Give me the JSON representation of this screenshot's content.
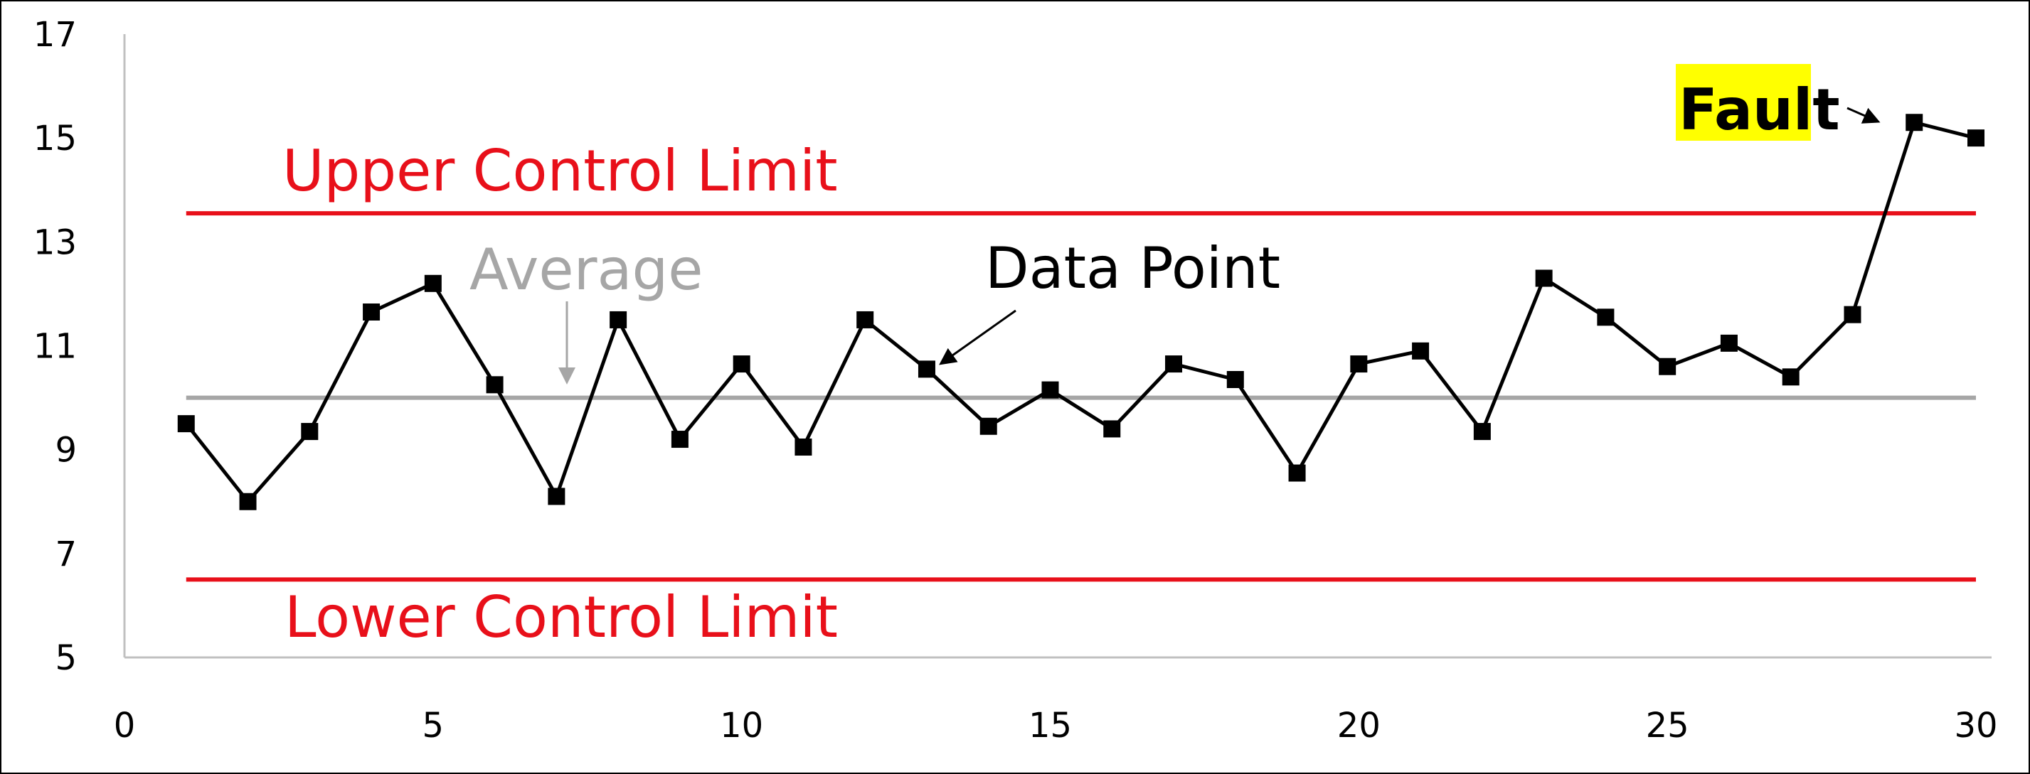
{
  "chart_data": {
    "type": "line",
    "title": "",
    "xlabel": "",
    "ylabel": "",
    "xlim": [
      0,
      30
    ],
    "ylim": [
      5,
      17
    ],
    "xticks": [
      "0",
      "5",
      "10",
      "15",
      "20",
      "25",
      "30"
    ],
    "yticks": [
      "5",
      "7",
      "9",
      "11",
      "13",
      "15",
      "17"
    ],
    "grid": false,
    "series": [
      {
        "x": [
          1,
          2,
          3,
          4,
          5,
          6,
          7,
          8,
          9,
          10,
          11,
          12,
          13,
          14,
          15,
          16,
          17,
          18,
          19,
          20,
          21,
          22,
          23,
          24,
          25,
          26,
          27,
          28,
          29,
          30
        ],
        "values": [
          9.5,
          8.0,
          9.35,
          11.65,
          12.2,
          10.25,
          8.1,
          11.5,
          9.2,
          10.65,
          9.05,
          11.5,
          10.55,
          9.45,
          10.15,
          9.4,
          10.65,
          10.35,
          8.55,
          10.65,
          10.9,
          9.35,
          12.3,
          11.55,
          10.6,
          11.05,
          10.4,
          11.6,
          15.3,
          15.0
        ]
      }
    ],
    "reference_lines": {
      "upper_control_limit": 13.55,
      "average": 10.0,
      "lower_control_limit": 6.5
    },
    "annotations": {
      "upper": "Upper Control Limit",
      "average": "Average",
      "data_point": "Data Point",
      "lower": "Lower Control Limit",
      "fault": "Fault"
    },
    "colors": {
      "control_limit": "#e8101a",
      "average": "#a6a6a6",
      "series": "#000000",
      "fault_highlight": "#ffff00",
      "axis": "#c0c0c0"
    }
  }
}
